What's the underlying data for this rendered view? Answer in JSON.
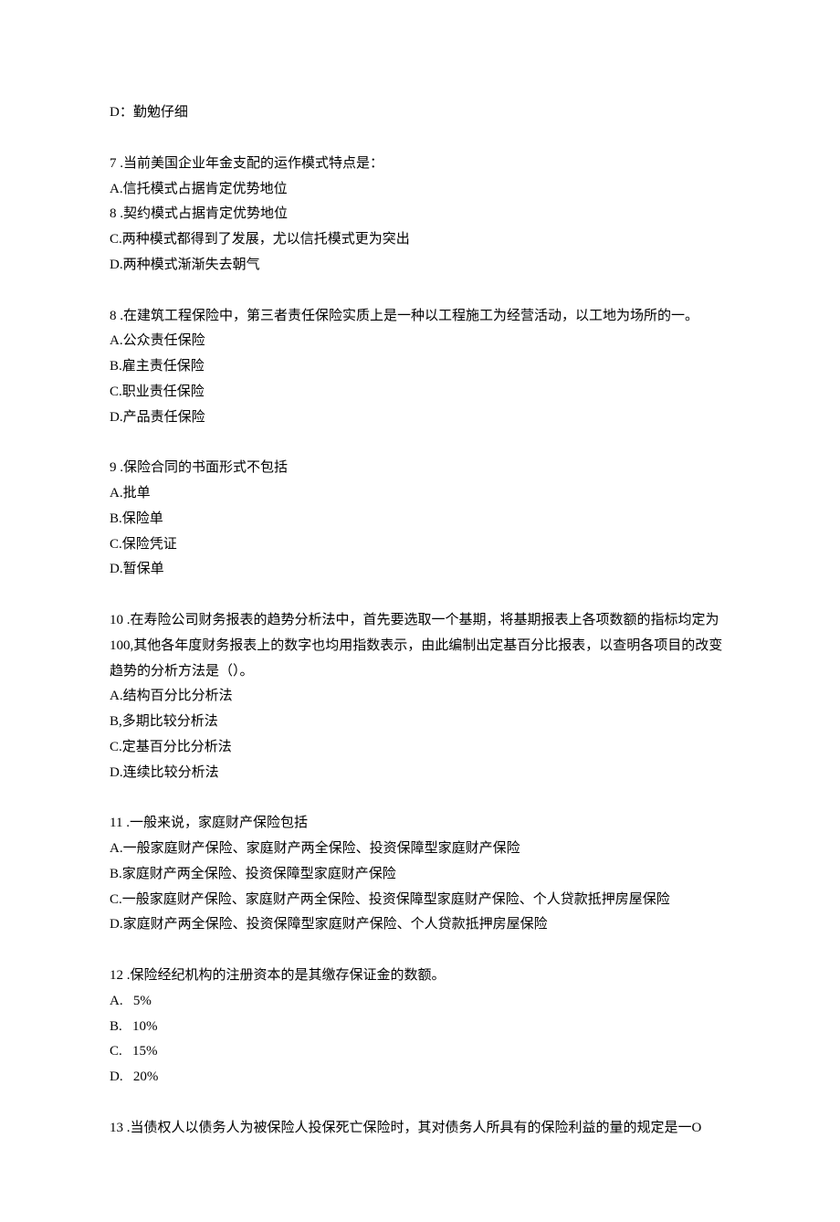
{
  "orphan": {
    "d": "D：勤勉仔细"
  },
  "q7": {
    "stem_num": "7",
    "stem_text": " .当前美国企业年金支配的运作模式特点是：",
    "a": "A.信托模式占据肯定优势地位",
    "b_num": "8",
    "b_text": " .契约模式占据肯定优势地位",
    "c": "C.两种模式都得到了发展，尤以信托模式更为突出",
    "d": "D.两种模式渐渐失去朝气"
  },
  "q8": {
    "stem_num": "8",
    "stem_text": " .在建筑工程保险中，第三者责任保险实质上是一种以工程施工为经营活动，以工地为场所的一。",
    "a": "A.公众责任保险",
    "b": "B.雇主责任保险",
    "c": "C.职业责任保险",
    "d": "D.产品责任保险"
  },
  "q9": {
    "stem_num": "9",
    "stem_text": " .保险合同的书面形式不包括",
    "a": "A.批单",
    "b": "B.保险单",
    "c": "C.保险凭证",
    "d": "D.暂保单"
  },
  "q10": {
    "stem_num": "10",
    "stem_text": " .在寿险公司财务报表的趋势分析法中，首先要选取一个基期，将基期报表上各项数额的指标均定为100,其他各年度财务报表上的数字也均用指数表示，由此编制出定基百分比报表，以查明各项目的改变趋势的分析方法是（）。",
    "a": "A.结构百分比分析法",
    "b": "B,多期比较分析法",
    "c": "C.定基百分比分析法",
    "d": "D.连续比较分析法"
  },
  "q11": {
    "stem_num": "11",
    "stem_text": " .一般来说，家庭财产保险包括",
    "a": "A.一般家庭财产保险、家庭财产两全保险、投资保障型家庭财产保险",
    "b": "B.家庭财产两全保险、投资保障型家庭财产保险",
    "c": "C.一般家庭财产保险、家庭财产两全保险、投资保障型家庭财产保险、个人贷款抵押房屋保险",
    "d": "D.家庭财产两全保险、投资保障型家庭财产保险、个人贷款抵押房屋保险"
  },
  "q12": {
    "stem_num": "12",
    "stem_text": " .保险经纪机构的注册资本的是其缴存保证金的数额。",
    "a_l": "A.",
    "a_v": "5%",
    "b_l": "B.",
    "b_v": "10%",
    "c_l": "C.",
    "c_v": "15%",
    "d_l": "D.",
    "d_v": "20%"
  },
  "q13": {
    "stem_num": "13",
    "stem_text": " .当债权人以债务人为被保险人投保死亡保险时，其对债务人所具有的保险利益的量的规定是一O"
  }
}
